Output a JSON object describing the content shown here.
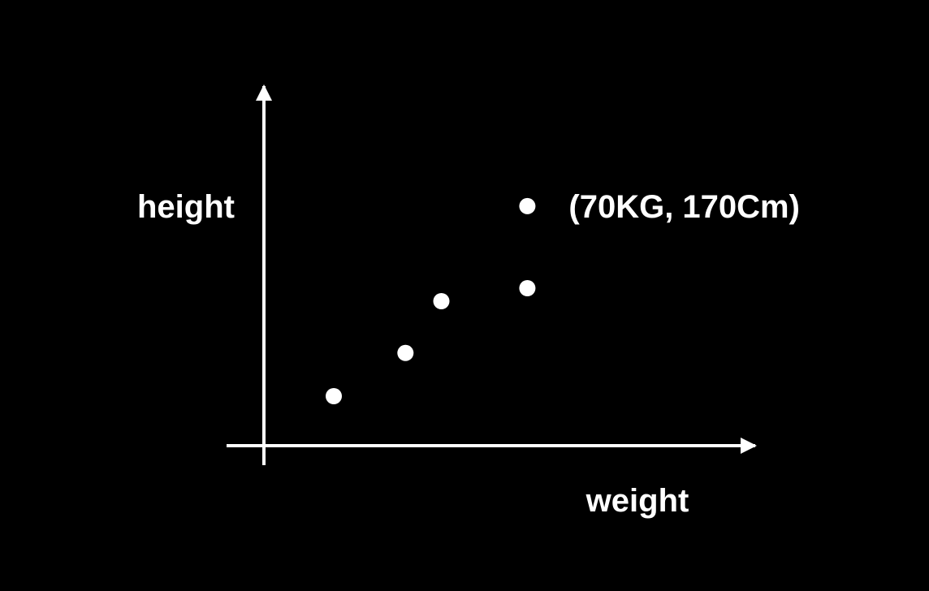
{
  "colors": {
    "background": "#000000",
    "foreground": "#ffffff"
  },
  "chart_data": {
    "type": "scatter",
    "xlabel": "weight",
    "ylabel": "height",
    "grid": false,
    "points": [
      {
        "x": 1.0,
        "y": 1.0
      },
      {
        "x": 2.0,
        "y": 2.0
      },
      {
        "x": 2.5,
        "y": 3.2
      },
      {
        "x": 3.7,
        "y": 3.5
      },
      {
        "x": 3.7,
        "y": 5.4,
        "label": "(70KG, 170Cm)"
      }
    ]
  }
}
